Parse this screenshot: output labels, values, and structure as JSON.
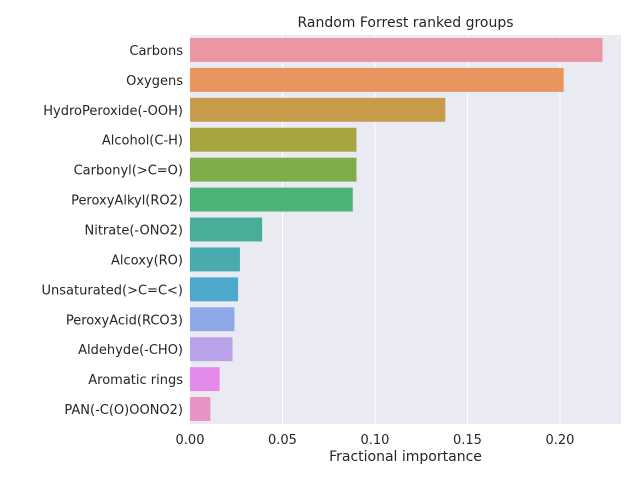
{
  "chart_data": {
    "type": "bar",
    "orientation": "horizontal",
    "title": "Random Forrest ranked groups",
    "xlabel": "Fractional importance",
    "ylabel": "",
    "xlim": [
      0.0,
      0.233
    ],
    "xticks": [
      "0.00",
      "0.05",
      "0.10",
      "0.15",
      "0.20"
    ],
    "grid": true,
    "legend": "none",
    "categories": [
      "Carbons",
      "Oxygens",
      "HydroPeroxide(-OOH)",
      "Alcohol(C-H)",
      "Carbonyl(>C=O)",
      "PeroxyAlkyl(RO2)",
      "Nitrate(-ONO2)",
      "Alcoxy(RO)",
      "Unsaturated(>C=C<)",
      "PeroxyAcid(RCO3)",
      "Aldehyde(-CHO)",
      "Aromatic rings",
      "PAN(-C(O)OONO2)"
    ],
    "values": [
      0.223,
      0.202,
      0.138,
      0.09,
      0.09,
      0.088,
      0.039,
      0.027,
      0.026,
      0.024,
      0.023,
      0.016,
      0.011
    ],
    "colors": [
      "#ea96a3",
      "#e8955e",
      "#c69c4a",
      "#a7a542",
      "#7fae48",
      "#4db276",
      "#49ae99",
      "#4aabaf",
      "#4da9cb",
      "#8fa9e8",
      "#bba3ea",
      "#e48aea",
      "#e794c5"
    ],
    "background": "#eaeaf2",
    "gridcolor": "#ffffff"
  }
}
